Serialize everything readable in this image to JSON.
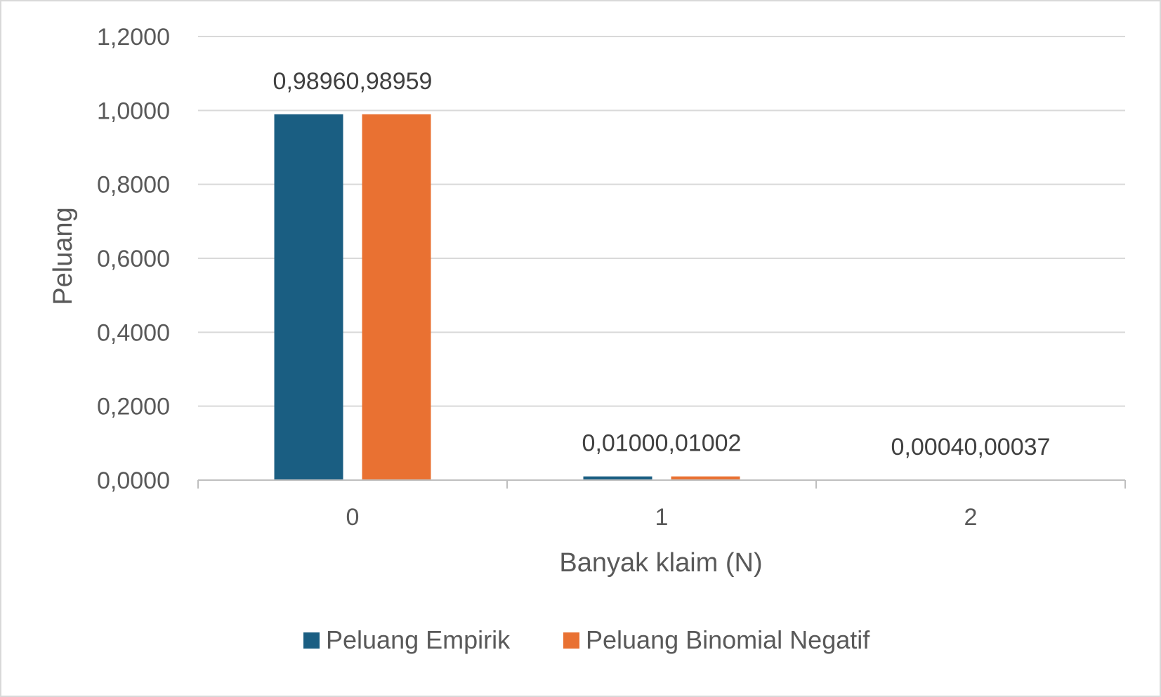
{
  "chart_data": {
    "type": "bar",
    "title": "",
    "xlabel": "Banyak klaim (N)",
    "ylabel": "Peluang",
    "categories": [
      "0",
      "1",
      "2"
    ],
    "series": [
      {
        "name": "Peluang Empirik",
        "values": [
          0.9896,
          0.01,
          0.0004
        ],
        "labels": [
          "0,9896",
          "0,0100",
          "0,0004"
        ],
        "color": "#1a5e82"
      },
      {
        "name": "Peluang Binomial Negatif",
        "values": [
          0.98959,
          0.01002,
          0.00037
        ],
        "labels": [
          "0,98959",
          "0,01002",
          "0,00037"
        ],
        "color": "#e97132"
      }
    ],
    "ylim": [
      0,
      1.2
    ],
    "yticks": [
      0,
      0.2,
      0.4,
      0.6,
      0.8,
      1.0,
      1.2
    ],
    "ytick_labels": [
      "0,0000",
      "0,2000",
      "0,4000",
      "0,6000",
      "0,8000",
      "1,0000",
      "1,2000"
    ],
    "grid": true,
    "legend_position": "bottom"
  }
}
